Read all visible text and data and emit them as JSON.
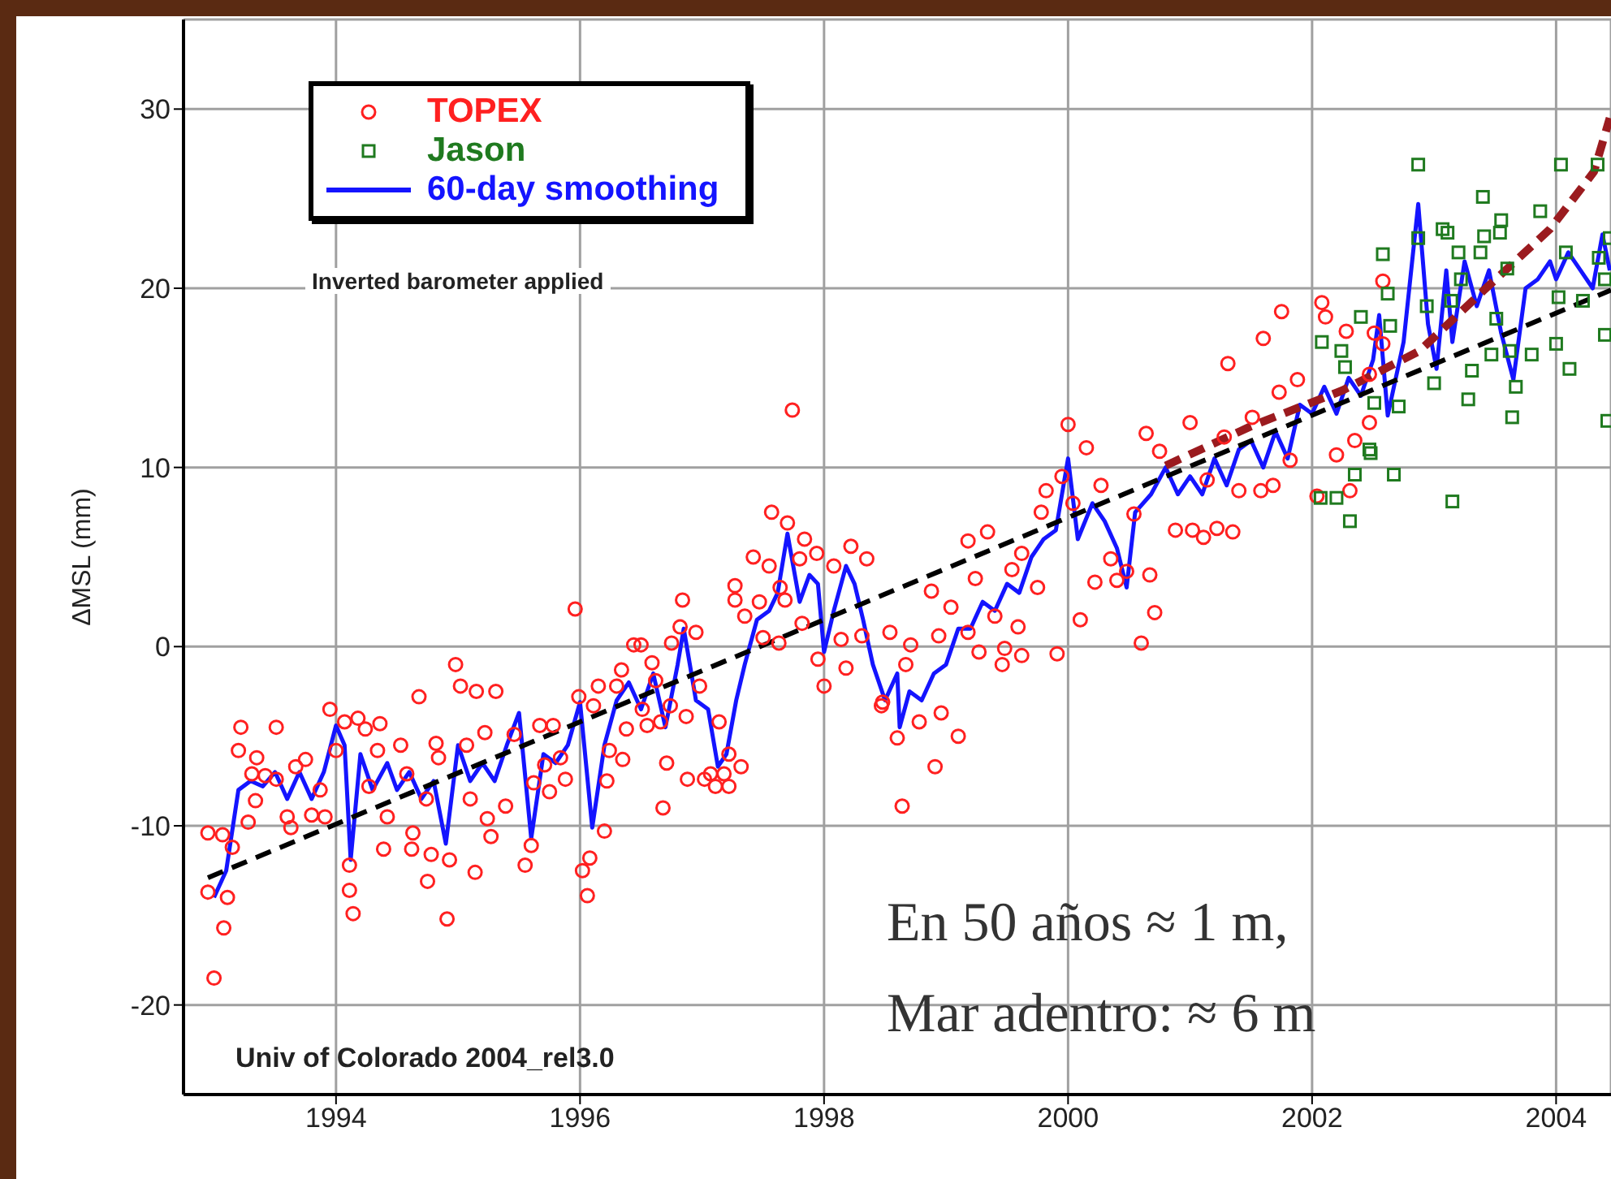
{
  "chart_data": {
    "type": "scatter",
    "ylabel": "ΔMSL  (mm)",
    "xlim": [
      1992.75,
      2004.45
    ],
    "xticks": [
      1994,
      1996,
      1998,
      2000,
      2002,
      2004
    ],
    "ylim": [
      -25,
      35
    ],
    "yticks": [
      -20,
      -10,
      0,
      10,
      20,
      30
    ],
    "grid": true,
    "legend": "top left",
    "annotations": [
      "Inverted barometer applied",
      "Univ of Colorado 2004_rel3.0",
      "En 50 años ≈ 1 m,",
      "Mar adentro: ≈ 6 m"
    ],
    "series": [
      {
        "name": "TOPEX",
        "type": "scatter",
        "marker": "circle",
        "color": "#ff2020",
        "x": [
          1992.95,
          1993.07,
          1992.95,
          1993.0,
          1993.08,
          1993.11,
          1993.15,
          1993.22,
          1993.2,
          1993.28,
          1993.34,
          1993.35,
          1993.31,
          1993.42,
          1993.51,
          1993.51,
          1993.6,
          1993.63,
          1993.67,
          1993.75,
          1993.8,
          1993.87,
          1993.91,
          1993.95,
          1994.0,
          1994.07,
          1994.11,
          1994.11,
          1994.14,
          1994.18,
          1994.24,
          1994.27,
          1994.34,
          1994.36,
          1994.39,
          1994.42,
          1994.53,
          1994.58,
          1994.62,
          1994.63,
          1994.68,
          1994.74,
          1994.75,
          1994.78,
          1994.82,
          1994.84,
          1994.91,
          1994.93,
          1994.98,
          1995.02,
          1995.07,
          1995.1,
          1995.14,
          1995.15,
          1995.22,
          1995.24,
          1995.27,
          1995.31,
          1995.39,
          1995.46,
          1995.55,
          1995.6,
          1995.62,
          1995.67,
          1995.71,
          1995.75,
          1995.78,
          1995.84,
          1995.88,
          1995.96,
          1995.99,
          1996.02,
          1996.06,
          1996.08,
          1996.11,
          1996.15,
          1996.2,
          1996.22,
          1996.24,
          1996.3,
          1996.34,
          1996.35,
          1996.38,
          1996.44,
          1996.5,
          1996.51,
          1996.55,
          1996.59,
          1996.62,
          1996.66,
          1996.68,
          1996.71,
          1996.74,
          1996.75,
          1996.82,
          1996.84,
          1996.87,
          1996.88,
          1996.95,
          1996.98,
          1997.02,
          1997.07,
          1997.11,
          1997.14,
          1997.18,
          1997.22,
          1997.22,
          1997.27,
          1997.27,
          1997.32,
          1997.35,
          1997.42,
          1997.47,
          1997.5,
          1997.55,
          1997.63,
          1997.64,
          1997.68,
          1997.74,
          1997.57,
          1997.7,
          1997.8,
          1997.82,
          1997.84,
          1997.94,
          1997.95,
          1998.0,
          1998.08,
          1998.14,
          1998.18,
          1998.22,
          1998.31,
          1998.35,
          1998.47,
          1998.54,
          1998.6,
          1998.64,
          1998.67,
          1998.91,
          1999.1,
          1998.96,
          1998.78,
          1998.48,
          1998.71,
          1998.94,
          1999.04,
          1998.88,
          1999.18,
          1999.24,
          1999.27,
          1999.4,
          1999.46,
          1999.48,
          1999.59,
          1999.62,
          1999.54,
          1999.62,
          1999.75,
          1999.91,
          2000.1,
          2000.22,
          2000.35,
          2000.4,
          2000.48,
          2000.6,
          2000.67,
          2000.71,
          2000.0,
          2000.15,
          1999.95,
          1999.82,
          1999.78,
          1999.34,
          1999.18,
          2000.04,
          2000.27,
          2000.54,
          2000.64,
          2000.75,
          2000.88,
          2001.02,
          2001.11,
          2001.22,
          2001.35,
          2001.0,
          2001.14,
          2001.28,
          2001.31,
          2001.4,
          2001.51,
          2001.58,
          2001.6,
          2001.68,
          2001.75,
          2001.73,
          2001.82,
          2001.88,
          2002.04,
          2002.08,
          2002.11,
          2002.2,
          2002.28,
          2002.31,
          2002.35,
          2002.47,
          2002.51,
          2002.58,
          2002.58,
          2002.47
        ],
        "values": [
          -10.4,
          -10.5,
          -13.7,
          -18.5,
          -15.7,
          -14,
          -11.2,
          -4.5,
          -5.8,
          -9.8,
          -8.6,
          -6.2,
          -7.1,
          -7.2,
          -4.5,
          -7.4,
          -9.5,
          -10.1,
          -6.7,
          -6.3,
          -9.4,
          -8,
          -9.5,
          -3.5,
          -5.8,
          -4.2,
          -12.2,
          -13.6,
          -14.9,
          -4,
          -4.6,
          -7.8,
          -5.8,
          -4.3,
          -11.3,
          -9.5,
          -5.5,
          -7.1,
          -11.3,
          -10.4,
          -2.8,
          -8.5,
          -13.1,
          -11.6,
          -5.4,
          -6.2,
          -15.2,
          -11.9,
          -1,
          -2.2,
          -5.5,
          -8.5,
          -12.6,
          -2.5,
          -4.8,
          -9.6,
          -10.6,
          -2.5,
          -8.9,
          -4.9,
          -12.2,
          -11.1,
          -7.6,
          -4.4,
          -6.6,
          -8.1,
          -4.4,
          -6.2,
          -7.4,
          2.1,
          -2.8,
          -12.5,
          -13.9,
          -11.8,
          -3.3,
          -2.2,
          -10.3,
          -7.5,
          -5.8,
          -2.2,
          -1.3,
          -6.3,
          -4.6,
          0.1,
          0.1,
          -3.5,
          -4.4,
          -0.9,
          -1.9,
          -4.2,
          -9,
          -6.5,
          -3.3,
          0.2,
          1.1,
          2.6,
          -3.9,
          -7.4,
          0.8,
          -2.2,
          -7.4,
          -7.1,
          -7.8,
          -4.2,
          -7.1,
          -6,
          -7.8,
          2.6,
          3.4,
          -6.7,
          1.7,
          5,
          2.5,
          0.5,
          4.5,
          0.2,
          3.3,
          2.6,
          13.2,
          7.5,
          6.9,
          4.9,
          1.3,
          6,
          5.2,
          -0.7,
          -2.2,
          4.5,
          0.4,
          -1.2,
          5.6,
          0.6,
          4.9,
          -3.3,
          0.8,
          -5.1,
          -8.9,
          -1,
          -6.7,
          -5,
          -3.7,
          -4.2,
          -3.1,
          0.1,
          0.6,
          2.2,
          3.1,
          0.8,
          3.8,
          -0.3,
          1.7,
          -1,
          -0.1,
          1.1,
          -0.5,
          4.3,
          5.2,
          3.3,
          -0.4,
          1.5,
          3.6,
          4.9,
          3.7,
          4.2,
          0.2,
          4,
          1.9,
          12.4,
          11.1,
          9.5,
          8.7,
          7.5,
          6.4,
          5.9,
          8,
          9,
          7.4,
          11.9,
          10.9,
          6.5,
          6.5,
          6.1,
          6.6,
          6.4,
          12.5,
          9.3,
          11.7,
          15.8,
          8.7,
          12.8,
          8.7,
          17.2,
          9,
          18.7,
          14.2,
          10.4,
          14.9,
          8.4,
          19.2,
          18.4,
          10.7,
          17.6,
          8.7,
          11.5,
          12.5,
          17.5,
          20.4,
          16.9,
          15.2
        ]
      },
      {
        "name": "Jason",
        "type": "scatter",
        "marker": "square",
        "color": "#1f7a1f",
        "x": [
          2002.08,
          2002.07,
          2002.2,
          2002.31,
          2002.24,
          2002.27,
          2002.35,
          2002.4,
          2002.47,
          2002.48,
          2002.51,
          2002.58,
          2002.62,
          2002.67,
          2002.64,
          2002.71,
          2002.87,
          2002.87,
          2002.94,
          2003.0,
          2003.07,
          2003.11,
          2003.14,
          2003.15,
          2003.2,
          2003.22,
          2003.28,
          2003.31,
          2003.38,
          2003.4,
          2003.41,
          2003.51,
          2003.47,
          2003.55,
          2003.54,
          2003.6,
          2003.62,
          2003.67,
          2003.64,
          2003.8,
          2003.87,
          2004.0,
          2004.02,
          2004.04,
          2004.08,
          2004.11,
          2004.22,
          2004.34,
          2004.35,
          2004.4,
          2004.4,
          2004.42,
          2004.44
        ],
        "values": [
          17,
          8.3,
          8.3,
          7,
          16.5,
          15.6,
          9.6,
          18.4,
          11,
          10.8,
          13.6,
          21.9,
          19.7,
          9.6,
          17.9,
          13.4,
          26.9,
          22.8,
          19,
          14.7,
          23.3,
          23.1,
          19.3,
          8.1,
          22,
          20.5,
          13.8,
          15.4,
          22,
          25.1,
          22.9,
          18.3,
          16.3,
          23.8,
          23.1,
          21.1,
          16.5,
          14.5,
          12.8,
          16.3,
          24.3,
          16.9,
          19.5,
          26.9,
          22,
          15.5,
          19.3,
          26.9,
          21.7,
          20.5,
          17.4,
          12.6,
          22.8
        ]
      },
      {
        "name": "60-day smoothing",
        "type": "line",
        "marker": "none",
        "line_style": "solid",
        "color": "#1414ff",
        "x": [
          1993.0,
          1993.1,
          1993.2,
          1993.3,
          1993.4,
          1993.5,
          1993.6,
          1993.7,
          1993.8,
          1993.9,
          1994.0,
          1994.07,
          1994.12,
          1994.2,
          1994.3,
          1994.42,
          1994.5,
          1994.6,
          1994.7,
          1994.8,
          1994.9,
          1995.0,
          1995.1,
          1995.2,
          1995.3,
          1995.4,
          1995.5,
          1995.6,
          1995.7,
          1995.8,
          1995.9,
          1996.0,
          1996.1,
          1996.2,
          1996.3,
          1996.4,
          1996.5,
          1996.6,
          1996.7,
          1996.8,
          1996.85,
          1996.95,
          1997.05,
          1997.13,
          1997.2,
          1997.28,
          1997.35,
          1997.45,
          1997.55,
          1997.62,
          1997.7,
          1997.8,
          1997.88,
          1997.95,
          1998.0,
          1998.08,
          1998.18,
          1998.25,
          1998.32,
          1998.4,
          1998.5,
          1998.6,
          1998.62,
          1998.7,
          1998.8,
          1998.9,
          1999.0,
          1999.1,
          1999.2,
          1999.3,
          1999.4,
          1999.5,
          1999.6,
          1999.7,
          1999.8,
          1999.9,
          2000.0,
          2000.08,
          2000.2,
          2000.3,
          2000.4,
          2000.48,
          2000.55,
          2000.68,
          2000.8,
          2000.9,
          2001.0,
          2001.1,
          2001.2,
          2001.3,
          2001.4,
          2001.5,
          2001.6,
          2001.7,
          2001.8,
          2001.9,
          2002.0,
          2002.1,
          2002.2,
          2002.3,
          2002.4,
          2002.5,
          2002.55,
          2002.62,
          2002.75,
          2002.87,
          2002.95,
          2003.02,
          2003.1,
          2003.15,
          2003.25,
          2003.35,
          2003.45,
          2003.55,
          2003.65,
          2003.75,
          2003.85,
          2003.95,
          2004.0,
          2004.1,
          2004.2,
          2004.3,
          2004.38,
          2004.44
        ],
        "values": [
          -14,
          -12.5,
          -8,
          -7.5,
          -7.8,
          -7,
          -8.5,
          -7,
          -8.5,
          -7,
          -4.4,
          -5.5,
          -11.9,
          -6,
          -8,
          -6.5,
          -8,
          -7,
          -8.5,
          -7.5,
          -11,
          -5.5,
          -7.5,
          -6.5,
          -7.5,
          -5.5,
          -3.7,
          -10.7,
          -6,
          -6.5,
          -5.5,
          -3.1,
          -10.1,
          -5.5,
          -3,
          -2,
          -3.5,
          -1.5,
          -4.5,
          -1,
          1,
          -3,
          -3.5,
          -6.7,
          -6,
          -3,
          -1,
          1.5,
          2,
          3,
          6.3,
          2.5,
          4,
          3.5,
          -0.3,
          2,
          4.5,
          3.5,
          1.5,
          -1,
          -3,
          -1.5,
          -4.5,
          -2.5,
          -3,
          -1.5,
          -1,
          1,
          1,
          2.5,
          2,
          3.5,
          3,
          5,
          6,
          6.5,
          10.5,
          6,
          8,
          7,
          5.5,
          3.3,
          7.5,
          8.5,
          10,
          8.5,
          9.5,
          8.5,
          10.5,
          9,
          11,
          11.5,
          10,
          12,
          10.5,
          13.5,
          13,
          14.5,
          13,
          15,
          14,
          16,
          18.5,
          12.9,
          17,
          24.7,
          18,
          15.5,
          21,
          17,
          21.5,
          19,
          21,
          17.5,
          14.9,
          20,
          20.5,
          21.5,
          20.5,
          22,
          21,
          20,
          23,
          21
        ]
      },
      {
        "type": "line",
        "marker": "none",
        "line_style": "dashed",
        "color": "#000000",
        "x": [
          1992.95,
          2004.45
        ],
        "values": [
          -12.9,
          19.9
        ]
      },
      {
        "type": "line",
        "marker": "none",
        "line_style": "dashed",
        "color": "#9b1b1f",
        "x": [
          2000.8,
          2001.5,
          2002.25,
          2002.88,
          2003.41,
          2003.95,
          2004.31,
          2004.44
        ],
        "values": [
          10.1,
          12.3,
          14.3,
          16.5,
          19.9,
          23.3,
          26.5,
          29.5
        ]
      }
    ]
  }
}
